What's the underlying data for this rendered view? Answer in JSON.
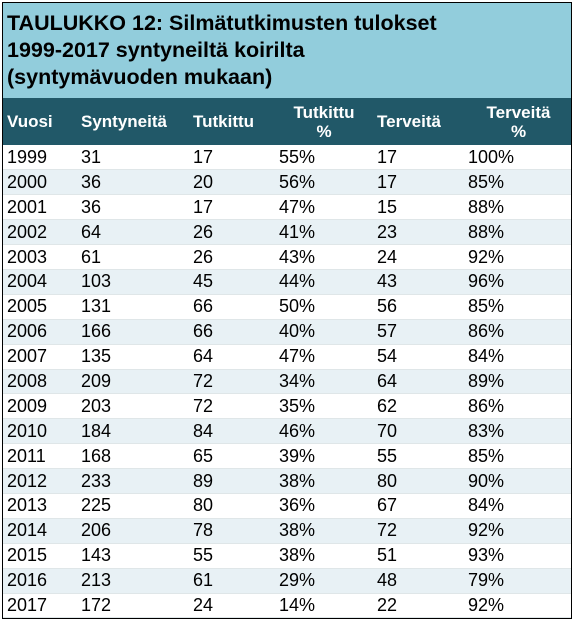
{
  "title_lines": [
    "TAULUKKO 12: Silmätutkimusten tulokset",
    "1999-2017 syntyneiltä koirilta",
    "(syntymävuoden mukaan)"
  ],
  "headers": [
    [
      "Vuosi"
    ],
    [
      "Syntyneitä"
    ],
    [
      "Tutkittu"
    ],
    [
      "Tutkittu",
      "%"
    ],
    [
      "Terveitä"
    ],
    [
      "Terveitä",
      "%"
    ]
  ],
  "rows": [
    [
      "1999",
      "31",
      "17",
      "55%",
      "17",
      "100%"
    ],
    [
      "2000",
      "36",
      "20",
      "56%",
      "17",
      "85%"
    ],
    [
      "2001",
      "36",
      "17",
      "47%",
      "15",
      "88%"
    ],
    [
      "2002",
      "64",
      "26",
      "41%",
      "23",
      "88%"
    ],
    [
      "2003",
      "61",
      "26",
      "43%",
      "24",
      "92%"
    ],
    [
      "2004",
      "103",
      "45",
      "44%",
      "43",
      "96%"
    ],
    [
      "2005",
      "131",
      "66",
      "50%",
      "56",
      "85%"
    ],
    [
      "2006",
      "166",
      "66",
      "40%",
      "57",
      "86%"
    ],
    [
      "2007",
      "135",
      "64",
      "47%",
      "54",
      "84%"
    ],
    [
      "2008",
      "209",
      "72",
      "34%",
      "64",
      "89%"
    ],
    [
      "2009",
      "203",
      "72",
      "35%",
      "62",
      "86%"
    ],
    [
      "2010",
      "184",
      "84",
      "46%",
      "70",
      "83%"
    ],
    [
      "2011",
      "168",
      "65",
      "39%",
      "55",
      "85%"
    ],
    [
      "2012",
      "233",
      "89",
      "38%",
      "80",
      "90%"
    ],
    [
      "2013",
      "225",
      "80",
      "36%",
      "67",
      "84%"
    ],
    [
      "2014",
      "206",
      "78",
      "38%",
      "72",
      "92%"
    ],
    [
      "2015",
      "143",
      "55",
      "38%",
      "51",
      "93%"
    ],
    [
      "2016",
      "213",
      "61",
      "29%",
      "48",
      "79%"
    ],
    [
      "2017",
      "172",
      "24",
      "14%",
      "22",
      "92%"
    ]
  ],
  "colors": {
    "title_bg": "#92cddc",
    "header_bg": "#215868",
    "stripe": "#e8f1f5"
  }
}
